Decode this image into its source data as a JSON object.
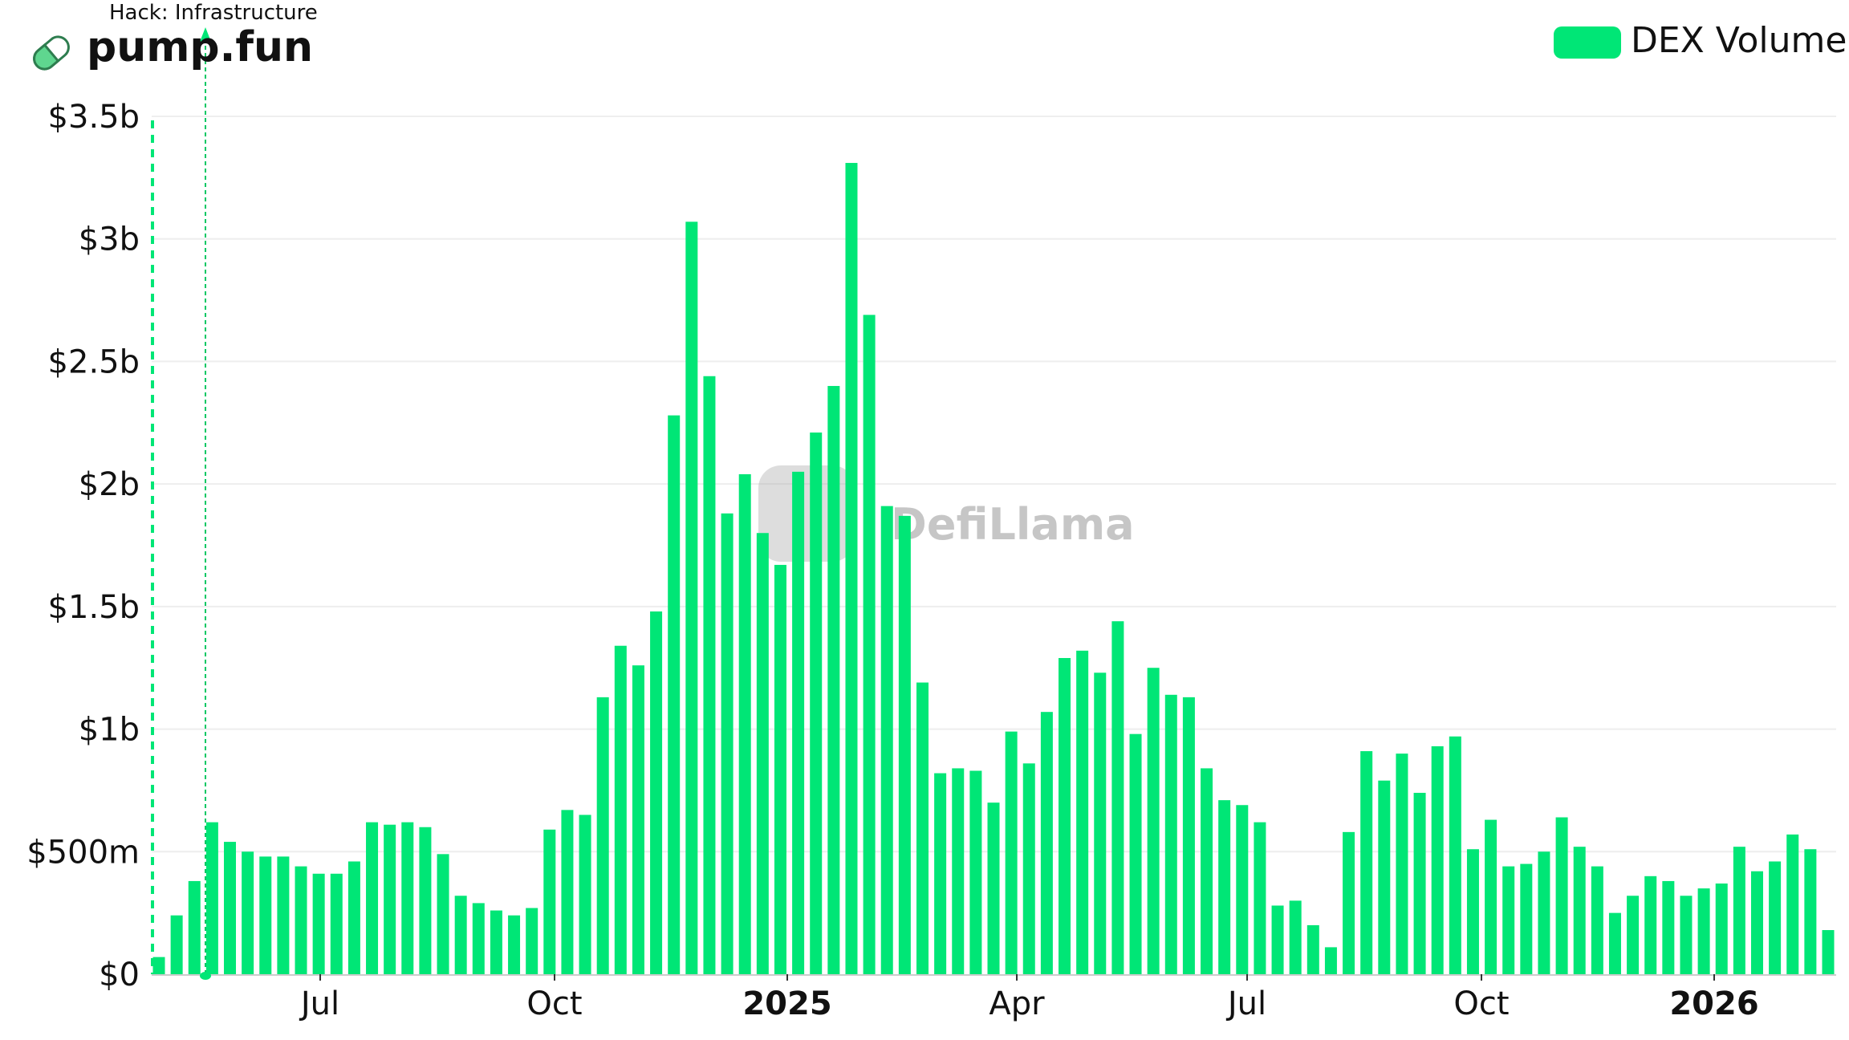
{
  "header": {
    "title": "pump.fun",
    "icon": "pill-icon"
  },
  "annotation": {
    "label": "Hack: Infrastructure"
  },
  "legend": {
    "label": "DEX Volume",
    "color": "#00e676"
  },
  "watermark": "DefiLlama",
  "chart_data": {
    "type": "bar",
    "title": "pump.fun",
    "xlabel": "",
    "ylabel": "",
    "ylim": [
      0,
      3.5
    ],
    "y_unit": "billions USD",
    "y_ticks": [
      0,
      0.5,
      1,
      1.5,
      2,
      2.5,
      3,
      3.5
    ],
    "y_tick_labels": [
      "$0",
      "$500m",
      "$1b",
      "$1.5b",
      "$2b",
      "$2.5b",
      "$3b",
      "$3.5b"
    ],
    "x_tick_labels": [
      {
        "label": "Jul",
        "bold": false
      },
      {
        "label": "Oct",
        "bold": false
      },
      {
        "label": "2025",
        "bold": true
      },
      {
        "label": "Apr",
        "bold": false
      },
      {
        "label": "Jul",
        "bold": false
      },
      {
        "label": "Oct",
        "bold": false
      },
      {
        "label": "2026",
        "bold": true
      }
    ],
    "grid": true,
    "legend_position": "top-right",
    "series": [
      {
        "name": "DEX Volume",
        "color": "#00e676",
        "values": [
          0.07,
          0.24,
          0.38,
          0.62,
          0.54,
          0.5,
          0.48,
          0.48,
          0.44,
          0.41,
          0.41,
          0.46,
          0.62,
          0.61,
          0.62,
          0.6,
          0.49,
          0.32,
          0.29,
          0.26,
          0.24,
          0.27,
          0.59,
          0.67,
          0.65,
          1.13,
          1.34,
          1.26,
          1.48,
          2.28,
          3.07,
          2.44,
          1.88,
          2.04,
          1.8,
          1.67,
          2.05,
          2.21,
          2.4,
          3.31,
          2.69,
          1.91,
          1.87,
          1.19,
          0.82,
          0.84,
          0.83,
          0.7,
          0.99,
          0.86,
          1.07,
          1.29,
          1.32,
          1.23,
          1.44,
          0.98,
          1.25,
          1.14,
          1.13,
          0.84,
          0.71,
          0.69,
          0.62,
          0.28,
          0.3,
          0.2,
          0.11,
          0.58,
          0.91,
          0.79,
          0.9,
          0.74,
          0.93,
          0.97,
          0.51,
          0.63,
          0.44,
          0.45,
          0.5,
          0.64,
          0.52,
          0.44,
          0.25,
          0.32,
          0.4,
          0.38,
          0.32,
          0.35,
          0.37,
          0.52,
          0.42,
          0.46,
          0.57,
          0.51,
          0.18
        ]
      }
    ]
  }
}
